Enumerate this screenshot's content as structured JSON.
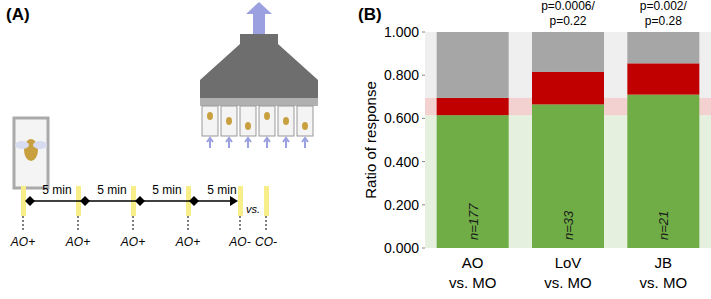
{
  "panel_a": {
    "label": "(A)",
    "interval_labels": [
      "5 min",
      "5 min",
      "5 min",
      "5 min"
    ],
    "stimulus_labels": [
      "AO+",
      "AO+",
      "AO+",
      "AO+",
      "AO-",
      "CO-"
    ],
    "comparison": "vs."
  },
  "chart_data": {
    "type": "bar",
    "title": "(B)",
    "y_label": "Ratio of response",
    "categories": [
      "AO\nvs. MO",
      "LoV\nvs. MO",
      "JB\nvs. MO"
    ],
    "series": [
      {
        "color": "#70ad47",
        "values": [
          0.615,
          0.665,
          0.71
        ]
      },
      {
        "color": "#c00000",
        "values": [
          0.08,
          0.15,
          0.145
        ]
      },
      {
        "color": "#a6a6a6",
        "values": [
          0.305,
          0.185,
          0.145
        ]
      }
    ],
    "stacked": true,
    "grid": false,
    "ylim": [
      0,
      1
    ],
    "yticks": [
      {
        "value": 0,
        "label": "0.000"
      },
      {
        "value": 0.2,
        "label": "0.200"
      },
      {
        "value": 0.4,
        "label": "0.400"
      },
      {
        "value": 0.6,
        "label": "0.600"
      },
      {
        "value": 0.8,
        "label": "0.800"
      },
      {
        "value": 1,
        "label": "1.000"
      }
    ],
    "annotations": {
      "n_labels": [
        "n=177",
        "n=33",
        "n=21"
      ],
      "p_labels": [
        null,
        "p=0.0006/\np=0.22",
        "p=0.002/\np=0.28"
      ]
    }
  }
}
